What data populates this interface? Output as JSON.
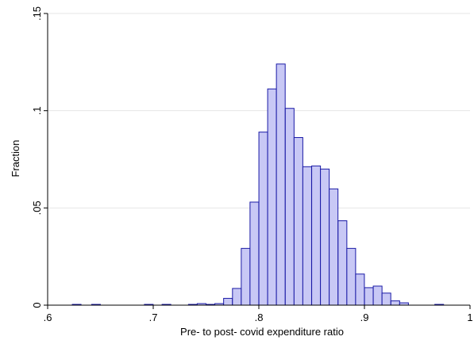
{
  "chart_data": {
    "type": "bar",
    "title": "",
    "xlabel": "Pre- to post- covid expenditure ratio",
    "ylabel": "Fraction",
    "xlim": [
      0.6,
      1.0
    ],
    "ylim": [
      0,
      0.15
    ],
    "xticks": [
      0.6,
      0.7,
      0.8,
      0.9,
      1.0
    ],
    "xtick_labels": [
      ".6",
      ".7",
      ".8",
      ".9",
      "1"
    ],
    "yticks": [
      0,
      0.05,
      0.1,
      0.15
    ],
    "ytick_labels": [
      "0",
      ".05",
      ".1",
      ".15"
    ],
    "grid": true,
    "bar_fill_color": "#c8c8f5",
    "bar_edge_color": "#1a1aa6",
    "bin_width": 0.0083,
    "bins": [
      {
        "x": 0.6275,
        "value": 0.0004
      },
      {
        "x": 0.6458,
        "value": 0.0004
      },
      {
        "x": 0.6958,
        "value": 0.0004
      },
      {
        "x": 0.7125,
        "value": 0.0004
      },
      {
        "x": 0.7375,
        "value": 0.0004
      },
      {
        "x": 0.7458,
        "value": 0.0008
      },
      {
        "x": 0.7542,
        "value": 0.0004
      },
      {
        "x": 0.7625,
        "value": 0.0008
      },
      {
        "x": 0.7708,
        "value": 0.0035
      },
      {
        "x": 0.7792,
        "value": 0.0086
      },
      {
        "x": 0.7875,
        "value": 0.0292
      },
      {
        "x": 0.7958,
        "value": 0.053
      },
      {
        "x": 0.8042,
        "value": 0.089
      },
      {
        "x": 0.8125,
        "value": 0.1112
      },
      {
        "x": 0.8208,
        "value": 0.124
      },
      {
        "x": 0.8292,
        "value": 0.1012
      },
      {
        "x": 0.8375,
        "value": 0.0862
      },
      {
        "x": 0.8458,
        "value": 0.0712
      },
      {
        "x": 0.8542,
        "value": 0.0716
      },
      {
        "x": 0.8625,
        "value": 0.07
      },
      {
        "x": 0.8708,
        "value": 0.0598
      },
      {
        "x": 0.8792,
        "value": 0.0434
      },
      {
        "x": 0.8875,
        "value": 0.0292
      },
      {
        "x": 0.8958,
        "value": 0.016
      },
      {
        "x": 0.9042,
        "value": 0.009
      },
      {
        "x": 0.9125,
        "value": 0.0098
      },
      {
        "x": 0.9208,
        "value": 0.0062
      },
      {
        "x": 0.9292,
        "value": 0.0022
      },
      {
        "x": 0.9375,
        "value": 0.0012
      },
      {
        "x": 0.9708,
        "value": 0.0004
      }
    ]
  }
}
